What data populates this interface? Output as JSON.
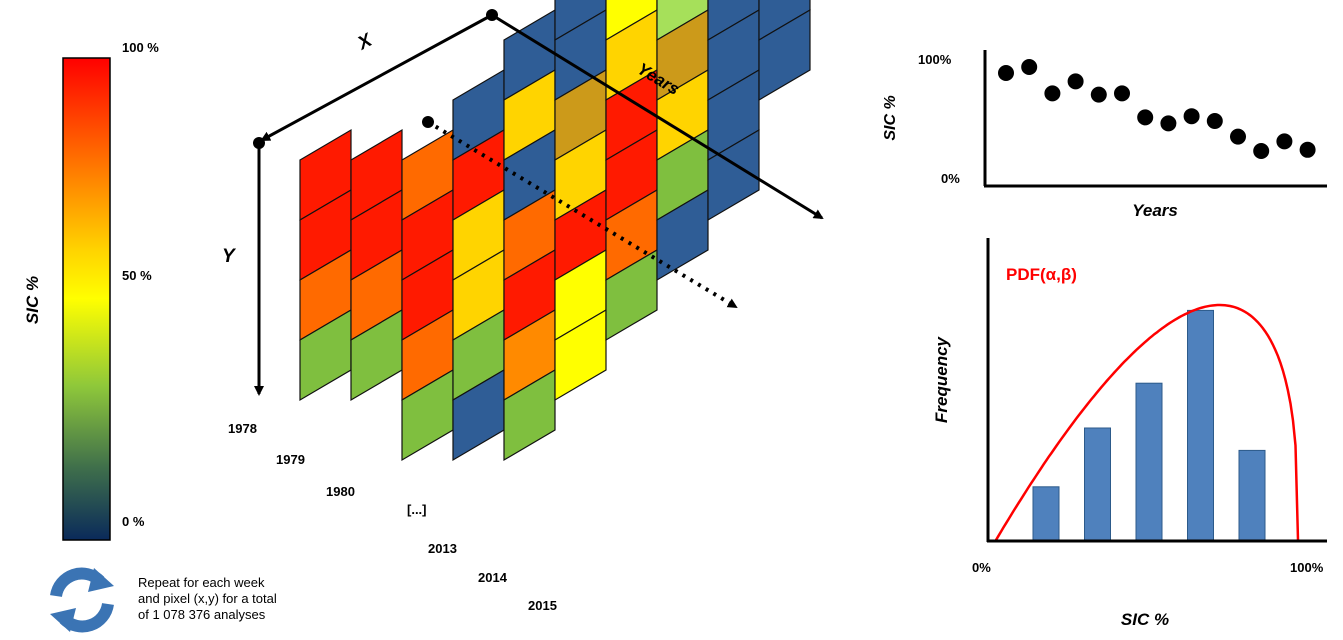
{
  "colorbar": {
    "title": "SIC %",
    "ticks": [
      "100 %",
      "50 %",
      "0 %"
    ],
    "colors": [
      "#ff0000",
      "#ff6a00",
      "#ffd400",
      "#ffff00",
      "#8fc83a",
      "#3f6f4b",
      "#0a2a5a"
    ]
  },
  "cube": {
    "axis_x": "X",
    "axis_y": "Y",
    "axis_years": "Years",
    "year_labels": [
      "1978",
      "1979",
      "1980",
      "[...]",
      "2013",
      "2014",
      "2015"
    ],
    "layers": [
      [
        "#ff1a00",
        "#ff1a00",
        "#ff6a00",
        "#7fbf3f"
      ],
      [
        "#ff1a00",
        "#ff1a00",
        "#ff6a00",
        "#7fbf3f"
      ],
      [
        "#ff6a00",
        "#ff1a00",
        "#ff1a00",
        "#ff6a00",
        "#7fbf3f"
      ],
      [
        "#2f5d96",
        "#ff1a00",
        "#ffd400",
        "#ffd400",
        "#7fbf3f",
        "#2f5d96"
      ],
      [
        "#2f5d96",
        "#ffd400",
        "#2f5d96",
        "#ff6a00",
        "#ff1a00",
        "#ff8a00",
        "#7fbf3f"
      ],
      [
        "#2f5d96",
        "#2f5d96",
        "#cc9a1a",
        "#ffd400",
        "#ff1a00",
        "#ffff00",
        "#ffff00"
      ],
      [
        "#2f5d96",
        "#ffff00",
        "#ffd400",
        "#ff1a00",
        "#ff1a00",
        "#ff6a00",
        "#7fbf3f"
      ],
      [
        "#2f5d96",
        "#2f5d96",
        "#a6e05a",
        "#cc9a1a",
        "#ffd400",
        "#7fbf3f",
        "#2f5d96"
      ],
      [
        "#2f5d96",
        "#2f5d96",
        "#4a7ac0",
        "#2f5d96",
        "#2f5d96",
        "#2f5d96",
        "#2f5d96"
      ],
      [
        "#2f5d96",
        "#2f5d96",
        "#2f5d96",
        "#2f5d96",
        "#2f5d96",
        "#2f5d96"
      ]
    ]
  },
  "repeat": {
    "lines": [
      "Repeat for each week",
      "and pixel (x,y) for a total",
      "of 1 078 376 analyses"
    ],
    "icon": "refresh-cycle-icon",
    "icon_color": "#3b74b4"
  },
  "chart_data": [
    {
      "type": "scatter",
      "title": "",
      "xlabel": "Years",
      "ylabel": "SIC %",
      "yticks": [
        "100%",
        "0%"
      ],
      "ylim": [
        0,
        100
      ],
      "x": [
        1,
        2,
        3,
        4,
        5,
        6,
        7,
        8,
        9,
        10,
        11,
        12,
        13,
        14
      ],
      "y": [
        85,
        90,
        68,
        78,
        67,
        68,
        48,
        43,
        49,
        45,
        32,
        20,
        28,
        21
      ],
      "color": "#000000"
    },
    {
      "type": "bar",
      "title": "",
      "xlabel": "SIC %",
      "ylabel": "Frequency",
      "xticks": [
        "0%",
        "100%"
      ],
      "categories": [
        "1",
        "2",
        "3",
        "4",
        "5"
      ],
      "values": [
        19,
        40,
        56,
        82,
        32
      ],
      "ylim": [
        0,
        100
      ],
      "bar_color": "#4f81bd",
      "curve_label": "PDF(α,β)",
      "curve_color": "#ff0000"
    }
  ]
}
